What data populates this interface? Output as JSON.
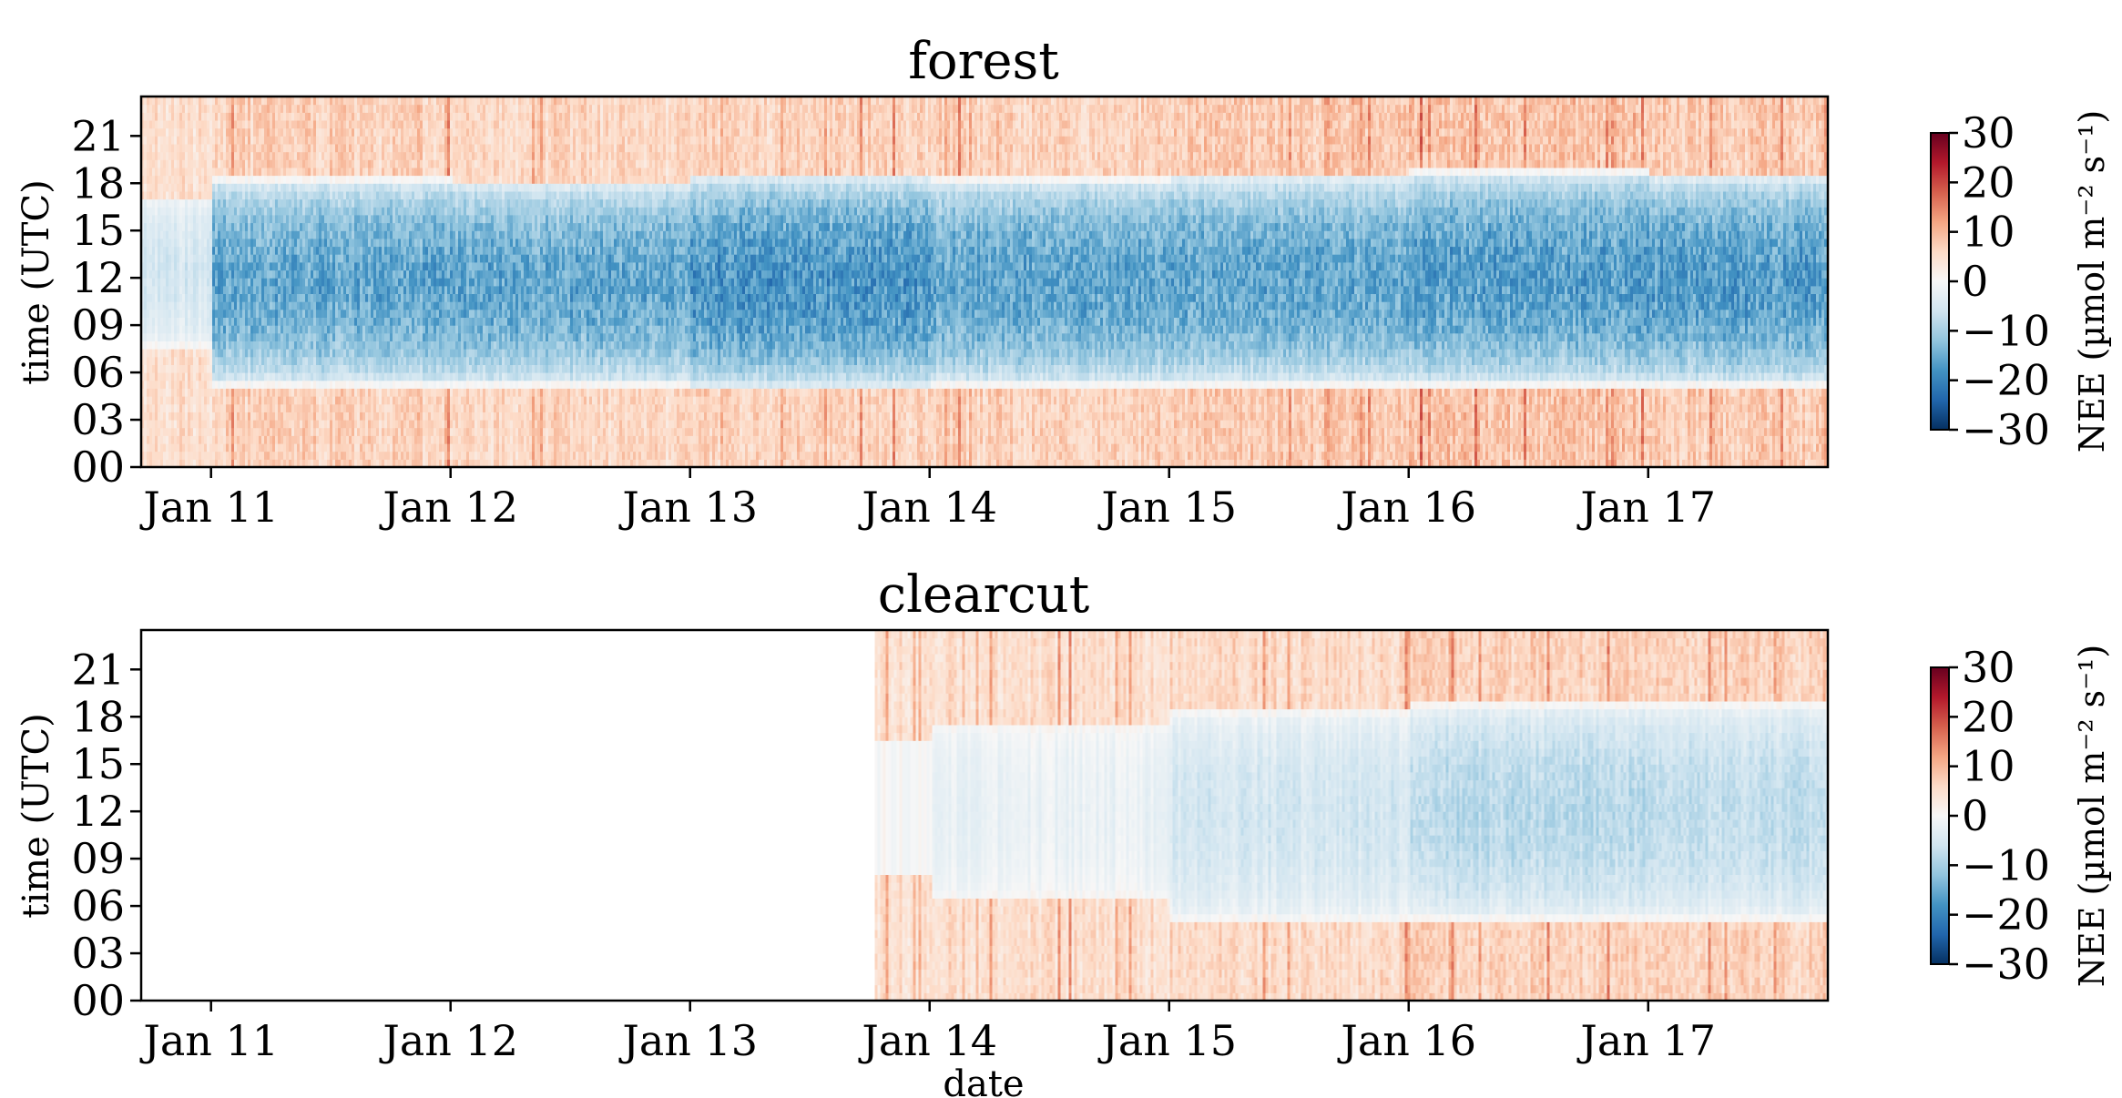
{
  "figure": {
    "xlabel": "date",
    "ylabel": "time (UTC)"
  },
  "chart_data": [
    {
      "type": "heatmap",
      "title": "forest",
      "xlabel": "",
      "ylabel": "time (UTC)",
      "x_ticks": [
        "Jan 11",
        "Jan 12",
        "Jan 13",
        "Jan 14",
        "Jan 15",
        "Jan 16",
        "Jan 17"
      ],
      "y_ticks": [
        "00",
        "03",
        "06",
        "09",
        "12",
        "15",
        "18",
        "21"
      ],
      "xlim": [
        "Jan 10 17:00",
        "Jan 17 18:00"
      ],
      "ylim": [
        0,
        23.5
      ],
      "data_start": "Jan 10 17:00",
      "colorbar": {
        "label": "NEE (µmol m⁻² s⁻¹)",
        "ticks": [
          "30",
          "20",
          "10",
          "0",
          "−10",
          "−20",
          "−30"
        ],
        "range": [
          -30,
          30
        ],
        "colormap": "RdBu_r"
      },
      "days": [
        {
          "date": "Jan 10",
          "uptake_start_hour": 7.5,
          "uptake_end_hour": 16.8,
          "peak_nee": -5,
          "night_nee": 6
        },
        {
          "date": "Jan 11",
          "uptake_start_hour": 5.0,
          "uptake_end_hour": 18.0,
          "peak_nee": -15,
          "night_nee": 8
        },
        {
          "date": "Jan 12",
          "uptake_start_hour": 5.0,
          "uptake_end_hour": 17.8,
          "peak_nee": -15,
          "night_nee": 7
        },
        {
          "date": "Jan 13",
          "uptake_start_hour": 4.8,
          "uptake_end_hour": 18.2,
          "peak_nee": -17,
          "night_nee": 8
        },
        {
          "date": "Jan 14",
          "uptake_start_hour": 5.0,
          "uptake_end_hour": 18.0,
          "peak_nee": -15,
          "night_nee": 8
        },
        {
          "date": "Jan 15",
          "uptake_start_hour": 5.0,
          "uptake_end_hour": 18.2,
          "peak_nee": -15,
          "night_nee": 9
        },
        {
          "date": "Jan 16",
          "uptake_start_hour": 5.0,
          "uptake_end_hour": 18.5,
          "peak_nee": -16,
          "night_nee": 10
        },
        {
          "date": "Jan 17",
          "uptake_start_hour": 5.0,
          "uptake_end_hour": 18.2,
          "peak_nee": -16,
          "night_nee": 9
        }
      ]
    },
    {
      "type": "heatmap",
      "title": "clearcut",
      "xlabel": "date",
      "ylabel": "time (UTC)",
      "x_ticks": [
        "Jan 11",
        "Jan 12",
        "Jan 13",
        "Jan 14",
        "Jan 15",
        "Jan 16",
        "Jan 17"
      ],
      "y_ticks": [
        "00",
        "03",
        "06",
        "09",
        "12",
        "15",
        "18",
        "21"
      ],
      "xlim": [
        "Jan 10 17:00",
        "Jan 17 18:00"
      ],
      "ylim": [
        0,
        23.5
      ],
      "data_start": "Jan 13 18:30",
      "colorbar": {
        "label": "NEE (µmol m⁻² s⁻¹)",
        "ticks": [
          "30",
          "20",
          "10",
          "0",
          "−10",
          "−20",
          "−30"
        ],
        "range": [
          -30,
          30
        ],
        "colormap": "RdBu_r"
      },
      "days": [
        {
          "date": "Jan 13",
          "uptake_start_hour": 8.0,
          "uptake_end_hour": 16.0,
          "peak_nee": 0,
          "night_nee": 6
        },
        {
          "date": "Jan 14",
          "uptake_start_hour": 6.5,
          "uptake_end_hour": 17.0,
          "peak_nee": -2,
          "night_nee": 6
        },
        {
          "date": "Jan 15",
          "uptake_start_hour": 5.0,
          "uptake_end_hour": 18.0,
          "peak_nee": -5,
          "night_nee": 7
        },
        {
          "date": "Jan 16",
          "uptake_start_hour": 5.0,
          "uptake_end_hour": 18.5,
          "peak_nee": -8,
          "night_nee": 8
        },
        {
          "date": "Jan 17",
          "uptake_start_hour": 5.0,
          "uptake_end_hour": 18.5,
          "peak_nee": -7,
          "night_nee": 8
        }
      ]
    }
  ]
}
